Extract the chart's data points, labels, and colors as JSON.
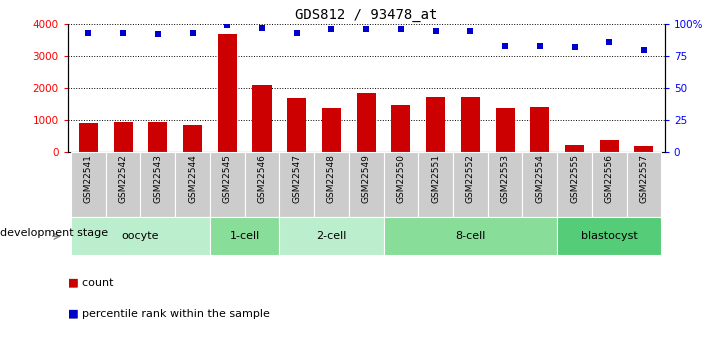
{
  "title": "GDS812 / 93478_at",
  "samples": [
    "GSM22541",
    "GSM22542",
    "GSM22543",
    "GSM22544",
    "GSM22545",
    "GSM22546",
    "GSM22547",
    "GSM22548",
    "GSM22549",
    "GSM22550",
    "GSM22551",
    "GSM22552",
    "GSM22553",
    "GSM22554",
    "GSM22555",
    "GSM22556",
    "GSM22557"
  ],
  "counts": [
    900,
    930,
    920,
    840,
    3700,
    2080,
    1700,
    1370,
    1850,
    1470,
    1730,
    1730,
    1380,
    1390,
    200,
    380,
    170
  ],
  "percentile_ranks": [
    93,
    93,
    92,
    93,
    99,
    97,
    93,
    96,
    96,
    96,
    95,
    95,
    83,
    83,
    82,
    86,
    80
  ],
  "stages": [
    {
      "label": "oocyte",
      "start": 0,
      "end": 3,
      "color": "#bbeecc"
    },
    {
      "label": "1-cell",
      "start": 4,
      "end": 5,
      "color": "#88dd99"
    },
    {
      "label": "2-cell",
      "start": 6,
      "end": 8,
      "color": "#bbeecc"
    },
    {
      "label": "8-cell",
      "start": 9,
      "end": 13,
      "color": "#88dd99"
    },
    {
      "label": "blastocyst",
      "start": 14,
      "end": 16,
      "color": "#55cc77"
    }
  ],
  "bar_color": "#cc0000",
  "dot_color": "#0000cc",
  "ylim_left": [
    0,
    4000
  ],
  "ylim_right": [
    0,
    100
  ],
  "yticks_left": [
    0,
    1000,
    2000,
    3000,
    4000
  ],
  "yticks_right": [
    0,
    25,
    50,
    75,
    100
  ],
  "yticklabels_right": [
    "0",
    "25",
    "50",
    "75",
    "100%"
  ],
  "tick_label_bg": "#cccccc",
  "development_stage_label": "development stage",
  "legend_count_label": "count",
  "legend_percentile_label": "percentile rank within the sample",
  "figsize": [
    7.11,
    3.45
  ],
  "dpi": 100
}
